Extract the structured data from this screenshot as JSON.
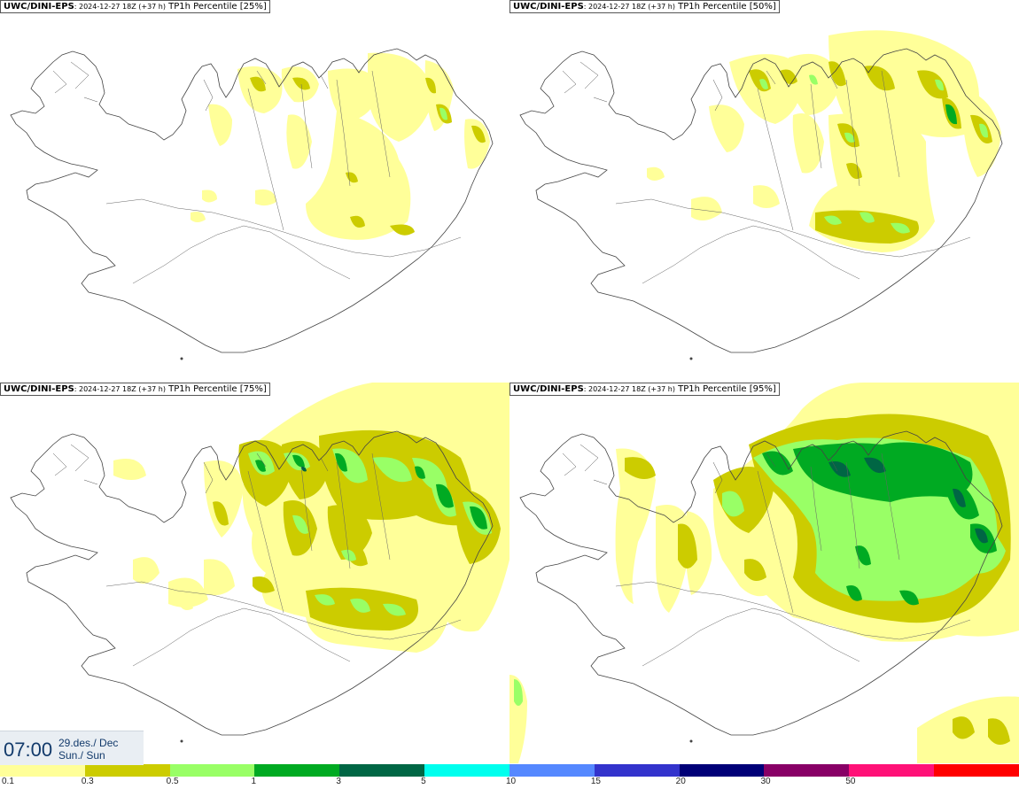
{
  "panels": [
    {
      "model": "UWC/DINI-EPS",
      "meta": ": 2024-12-27 18Z (+37 h)",
      "title": " TP1h Percentile [25%]"
    },
    {
      "model": "UWC/DINI-EPS",
      "meta": ": 2024-12-27 18Z (+37 h)",
      "title": " TP1h Percentile [50%]"
    },
    {
      "model": "UWC/DINI-EPS",
      "meta": ": 2024-12-27 18Z (+37 h)",
      "title": " TP1h Percentile [75%]"
    },
    {
      "model": "UWC/DINI-EPS",
      "meta": ": 2024-12-27 18Z (+37 h)",
      "title": " TP1h Percentile [95%]"
    }
  ],
  "valid_time": {
    "time": "07:00",
    "date_line1": "29.des./ Dec",
    "date_line2": "Sun./ Sun"
  },
  "legend": {
    "colors": [
      "#ffff99",
      "#cccc00",
      "#99ff66",
      "#00aa22",
      "#006644",
      "#00ffee",
      "#5588ff",
      "#3333cc",
      "#000077",
      "#880066",
      "#ff1177",
      "#ff0000"
    ],
    "ticks": [
      "0.1",
      "0.3",
      "0.5",
      "1",
      "3",
      "5",
      "10",
      "15",
      "20",
      "30",
      "50"
    ]
  }
}
